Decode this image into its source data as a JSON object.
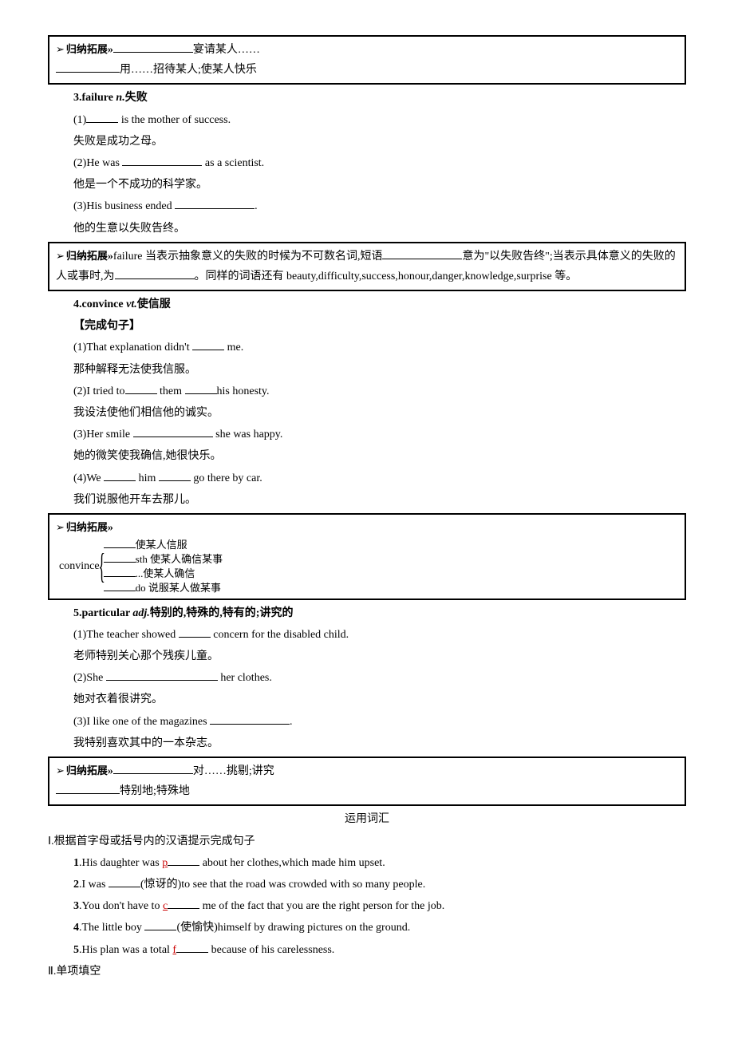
{
  "box1": {
    "gui_label": "归纳拓展",
    "line1_suffix": "宴请某人……",
    "line2_suffix": "用……招待某人;使某人快乐"
  },
  "item3": {
    "title": "3.failure",
    "pos": "n.",
    "meaning": "失败",
    "q1_suffix": " is the mother of success.",
    "q1_cn": "失败是成功之母。",
    "q2_prefix": "(2)He was ",
    "q2_suffix": " as a scientist.",
    "q2_cn": "他是一个不成功的科学家。",
    "q3_prefix": "(3)His business ended ",
    "q3_suffix": ".",
    "q3_cn": "他的生意以失败告终。"
  },
  "box2": {
    "gui_label": "归纳拓展",
    "text1": "failure 当表示抽象意义的失败的时候为不可数名词,短语",
    "text2": "意为\"以失败告终\";当表示具体意义的失败的人或事时,为",
    "text3": "。同样的词语还有",
    "text4": "beauty,difficulty,success,honour,danger,knowledge,surprise 等。"
  },
  "item4": {
    "title": "4.convince",
    "pos": "vt.",
    "meaning": "使信服",
    "complete": "【完成句子】",
    "q1_prefix": "(1)That explanation didn't ",
    "q1_suffix": " me.",
    "q1_cn": "那种解释无法使我信服。",
    "q2_prefix": "(2)I tried to",
    "q2_mid": " them ",
    "q2_suffix": "his honesty.",
    "q2_cn": "我设法使他们相信他的诚实。",
    "q3_prefix": "(3)Her smile ",
    "q3_suffix": " she was happy.",
    "q3_cn": "她的微笑使我确信,她很快乐。",
    "q4_prefix": "(4)We ",
    "q4_mid": " him ",
    "q4_suffix": " go there by car.",
    "q4_cn": "我们说服他开车去那儿。"
  },
  "box3": {
    "gui_label": "归纳拓展",
    "word": "convince",
    "items": [
      "使某人信服",
      "sth 使某人确信某事",
      "...使某人确信",
      "do 说服某人做某事"
    ]
  },
  "item5": {
    "title": "5.particular",
    "pos": "adj.",
    "meaning": "特别的,特殊的,特有的;讲究的",
    "q1_prefix": "(1)The teacher showed ",
    "q1_suffix": " concern for the disabled child.",
    "q1_cn": "老师特别关心那个残疾儿童。",
    "q2_prefix": "(2)She ",
    "q2_suffix": " her clothes.",
    "q2_cn": "她对衣着很讲究。",
    "q3_prefix": "(3)I like one of the magazines ",
    "q3_suffix": ".",
    "q3_cn": "我特别喜欢其中的一本杂志。"
  },
  "box4": {
    "gui_label": "归纳拓展",
    "line1_suffix": "对……挑剔;讲究",
    "line2_suffix": "特别地;特殊地"
  },
  "vocab_section": {
    "title": "运用词汇",
    "sub1": "Ⅰ.根据首字母或括号内的汉语提示完成句子",
    "q1_num": "1",
    "q1_prefix": ".His daughter was ",
    "q1_letter": "p",
    "q1_suffix": " about her clothes,which made him upset.",
    "q2_num": "2",
    "q2_prefix": ".I was ",
    "q2_hint": "(惊讶的)to see that the road was crowded with so many people.",
    "q3_num": "3",
    "q3_prefix": ".You don't have to ",
    "q3_letter": "c",
    "q3_suffix": " me of the fact that you are the right person for the job.",
    "q4_num": "4",
    "q4_prefix": ".The little boy ",
    "q4_hint": "(使愉快)himself by drawing pictures on the ground.",
    "q5_num": "5",
    "q5_prefix": ".His plan was a total ",
    "q5_letter": "f",
    "q5_suffix": " because of his carelessness.",
    "sub2": "Ⅱ.单项填空"
  }
}
